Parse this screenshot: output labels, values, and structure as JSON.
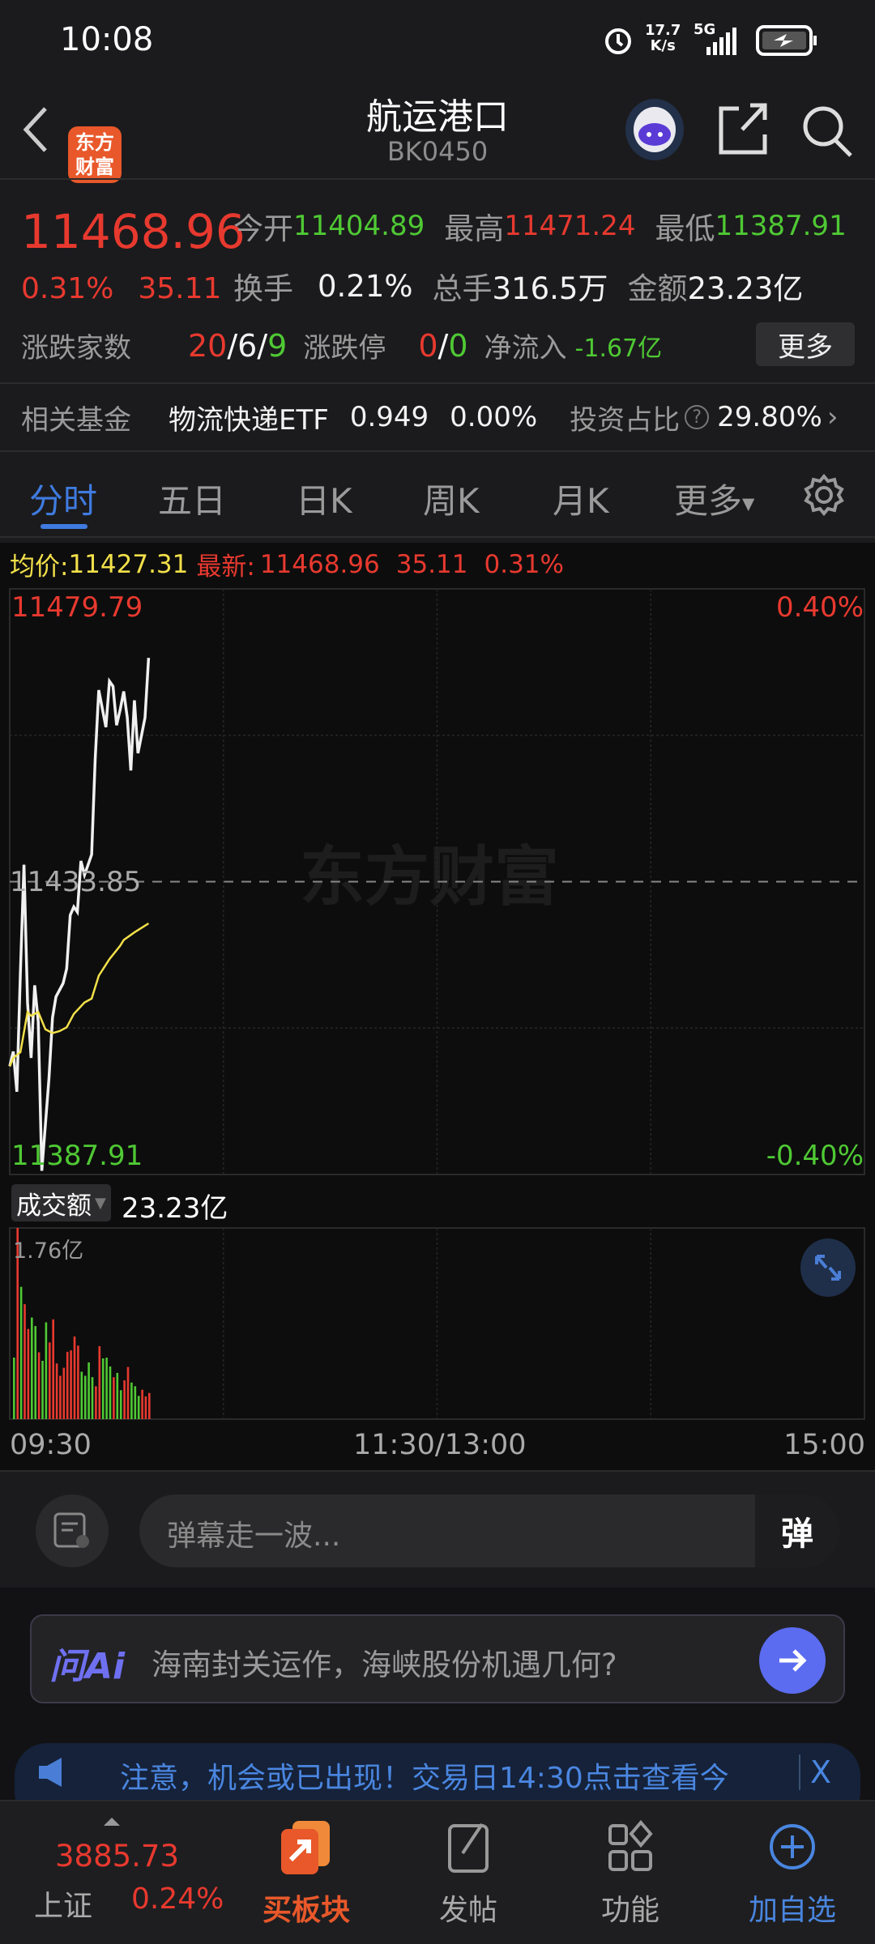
{
  "status_bar": {
    "time": "10:08",
    "net_speed": "17.7",
    "net_unit": "K/s",
    "network": "5G",
    "icons": [
      "alarm-icon",
      "signal-icon",
      "battery-charging-icon"
    ]
  },
  "header": {
    "title": "航运港口",
    "code": "BK0450",
    "logo_text": "东方财富",
    "icons": [
      "back-icon",
      "robot-avatar-icon",
      "share-icon",
      "search-icon"
    ]
  },
  "quote": {
    "price": "11468.96",
    "change_pct": "0.31%",
    "change": "35.11",
    "open_label": "今开",
    "open": "11404.89",
    "high_label": "最高",
    "high": "11471.24",
    "low_label": "最低",
    "low": "11387.91",
    "turnover_label": "换手",
    "turnover": "0.21%",
    "volume_label": "总手",
    "volume": "316.5万",
    "amount_label": "金额",
    "amount": "23.23亿",
    "breadth_label": "涨跌家数",
    "up": "20",
    "flat": "6",
    "down": "9",
    "limit_label": "涨跌停",
    "limit_up": "0",
    "limit_down": "0",
    "netflow_label": "净流入",
    "netflow": "-1.67亿",
    "more_label": "更多"
  },
  "fund": {
    "label": "相关基金",
    "name": "物流快递ETF",
    "price": "0.949",
    "change": "0.00%",
    "ratio_label": "投资占比",
    "ratio": "29.80%"
  },
  "tabs": [
    {
      "label": "分时",
      "active": true
    },
    {
      "label": "五日"
    },
    {
      "label": "日K"
    },
    {
      "label": "周K"
    },
    {
      "label": "月K"
    },
    {
      "label": "更多"
    }
  ],
  "info_bar": {
    "avg_label": "均价:",
    "avg": "11427.31",
    "latest_label": "最新:",
    "latest": "11468.96",
    "change": "35.11",
    "change_pct": "0.31%"
  },
  "colors": {
    "up": "#e8392f",
    "down": "#4fc934",
    "price_line": "#f0f0f0",
    "avg_line": "#f2e04a",
    "accent": "#3f7be0",
    "background": "#1b1b1d",
    "chart_bg": "#0d0d0d"
  },
  "watermark": "东方财富",
  "chart_data": [
    {
      "type": "line",
      "ylim": [
        11387.91,
        11479.79
      ],
      "y_base": 11433.85,
      "y_top_label": "11479.79",
      "y_mid_label": "11433.85",
      "y_bottom_label": "11387.91",
      "pct_top_label": "0.40%",
      "pct_bottom_label": "-0.40%",
      "x_session_minutes": 240,
      "x_tick_labels": [
        "09:30",
        "11:30/13:00",
        "15:00"
      ],
      "grid": true,
      "series": [
        {
          "key": "price",
          "minutes": [
            0,
            1,
            2,
            3,
            4,
            5,
            6,
            7,
            8,
            9,
            11,
            12,
            13,
            15,
            16,
            17,
            18,
            19,
            20,
            21,
            23,
            24,
            25,
            27,
            28,
            29,
            30,
            31,
            32,
            33,
            34,
            35,
            36,
            38,
            39
          ],
          "values": [
            11404.89,
            11407.2,
            11400.9,
            11419.7,
            11436.5,
            11414.9,
            11406.2,
            11417.6,
            11411.9,
            11388.5,
            11402.9,
            11412.5,
            11415.8,
            11417.9,
            11420.2,
            11428.6,
            11429.9,
            11429.1,
            11437.1,
            11434.9,
            11438.1,
            11453.1,
            11463.9,
            11458.1,
            11465.3,
            11464.5,
            11458.4,
            11460.8,
            11463.7,
            11459.6,
            11451.3,
            11462.3,
            11454.0,
            11459.6,
            11468.96
          ]
        },
        {
          "key": "avg",
          "minutes": [
            0,
            1,
            3,
            5,
            6,
            8,
            10,
            12,
            14,
            16,
            18,
            21,
            23,
            25,
            28,
            31,
            32,
            35,
            39
          ],
          "values": [
            11404.89,
            11406.2,
            11407.1,
            11413.4,
            11412.8,
            11413.4,
            11410.7,
            11410.1,
            11410.4,
            11411.0,
            11413.1,
            11414.9,
            11415.5,
            11419.1,
            11421.7,
            11423.8,
            11424.7,
            11425.9,
            11427.31
          ]
        }
      ]
    },
    {
      "type": "bar",
      "title": "成交额",
      "total": "23.23亿",
      "unit": "亿",
      "ymax_label": "1.76亿",
      "ylim": [
        0,
        1.76
      ],
      "values": [
        0.566,
        1.76,
        1.218,
        1.058,
        0.83,
        0.935,
        0.857,
        0.615,
        0.537,
        0.891,
        0.706,
        0.918,
        0.512,
        0.399,
        0.473,
        0.62,
        0.633,
        0.761,
        0.677,
        0.436,
        0.399,
        0.522,
        0.386,
        0.303,
        0.672,
        0.559,
        0.566,
        0.485,
        0.386,
        0.426,
        0.266,
        0.357,
        0.48,
        0.337,
        0.303,
        0.214,
        0.271,
        0.209,
        0.241
      ],
      "directions": [
        "down",
        "up",
        "down",
        "up",
        "up",
        "down",
        "down",
        "up",
        "down",
        "down",
        "up",
        "up",
        "up",
        "up",
        "up",
        "up",
        "up",
        "up",
        "up",
        "down",
        "down",
        "down",
        "down",
        "up",
        "up",
        "down",
        "down",
        "down",
        "up",
        "down",
        "down",
        "up",
        "up",
        "down",
        "down",
        "down",
        "up",
        "up",
        "up"
      ]
    }
  ],
  "danmaku": {
    "placeholder": "弹幕走一波...",
    "send_label": "弹"
  },
  "ai_box": {
    "logo": "问Ai",
    "prompt": "海南封关运作，海峡股份机遇几何?"
  },
  "notice": {
    "text": "注意，机会或已出现！交易日14:30点击查看今",
    "close": "X"
  },
  "bottom_nav": {
    "index_name": "上证",
    "index_value": "3885.73",
    "index_change": "0.24%",
    "items": [
      {
        "label": "买板块",
        "icon": "buy-sector-icon"
      },
      {
        "label": "发帖",
        "icon": "post-icon"
      },
      {
        "label": "功能",
        "icon": "functions-icon"
      },
      {
        "label": "加自选",
        "icon": "add-watchlist-icon"
      }
    ]
  }
}
